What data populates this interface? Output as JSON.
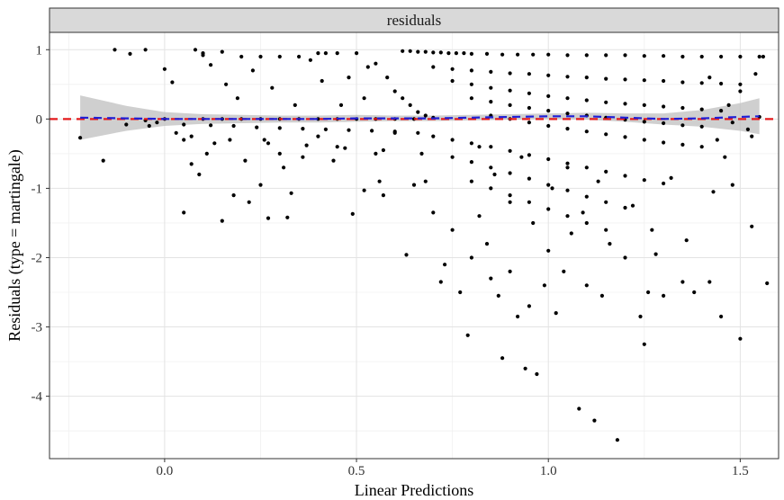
{
  "chart_data": {
    "type": "scatter",
    "facet_label": "residuals",
    "xlabel": "Linear Predictions",
    "ylabel": "Residuals (type = martingale)",
    "xlim": [
      -0.3,
      1.6
    ],
    "ylim": [
      -4.9,
      1.25
    ],
    "x_ticks": [
      0.0,
      0.5,
      1.0,
      1.5
    ],
    "x_tick_labels": [
      "0.0",
      "0.5",
      "1.0",
      "1.5"
    ],
    "y_ticks": [
      1,
      0,
      -1,
      -2,
      -3,
      -4
    ],
    "y_tick_labels": [
      "1",
      "0",
      "-1",
      "-2",
      "-3",
      "-4"
    ],
    "grid": true,
    "reference_line": {
      "y": 0,
      "style": "dashed",
      "color": "#e41a1c"
    },
    "smooth_fit": {
      "style": "dashed",
      "color": "#1f1fd6",
      "band_color": "#bfbfbf",
      "x": [
        -0.22,
        -0.1,
        0.0,
        0.1,
        0.2,
        0.3,
        0.4,
        0.5,
        0.6,
        0.7,
        0.8,
        0.9,
        1.0,
        1.1,
        1.2,
        1.3,
        1.4,
        1.5,
        1.55
      ],
      "y": [
        0.02,
        0.01,
        0.0,
        0.0,
        0.0,
        0.0,
        0.0,
        0.01,
        0.01,
        0.01,
        0.02,
        0.03,
        0.04,
        0.04,
        0.02,
        0.0,
        0.01,
        0.03,
        0.04
      ],
      "band_half_width": [
        0.32,
        0.18,
        0.1,
        0.07,
        0.06,
        0.05,
        0.05,
        0.05,
        0.04,
        0.04,
        0.04,
        0.04,
        0.04,
        0.05,
        0.06,
        0.08,
        0.12,
        0.2,
        0.26
      ]
    },
    "points": [
      [
        -0.22,
        -0.27
      ],
      [
        -0.16,
        -0.6
      ],
      [
        -0.13,
        1.0
      ],
      [
        -0.09,
        0.94
      ],
      [
        -0.05,
        1.0
      ],
      [
        -0.1,
        -0.08
      ],
      [
        -0.04,
        -0.1
      ],
      [
        -0.02,
        -0.05
      ],
      [
        0.0,
        0.72
      ],
      [
        0.02,
        0.53
      ],
      [
        0.05,
        -1.35
      ],
      [
        0.08,
        1.0
      ],
      [
        0.1,
        0.92
      ],
      [
        0.12,
        0.78
      ],
      [
        0.15,
        -1.47
      ],
      [
        0.18,
        -1.1
      ],
      [
        0.22,
        -1.2
      ],
      [
        0.25,
        -0.95
      ],
      [
        0.27,
        -1.43
      ],
      [
        0.32,
        -1.42
      ],
      [
        0.33,
        -1.07
      ],
      [
        0.45,
        -0.4
      ],
      [
        0.49,
        -1.37
      ],
      [
        0.52,
        -1.03
      ],
      [
        0.05,
        -0.3
      ],
      [
        0.07,
        -0.65
      ],
      [
        0.09,
        -0.8
      ],
      [
        0.11,
        -0.5
      ],
      [
        0.13,
        -0.35
      ],
      [
        0.16,
        0.5
      ],
      [
        0.19,
        0.3
      ],
      [
        0.21,
        -0.6
      ],
      [
        0.23,
        0.7
      ],
      [
        0.26,
        -0.3
      ],
      [
        0.28,
        0.45
      ],
      [
        0.3,
        -0.5
      ],
      [
        0.31,
        -0.7
      ],
      [
        0.34,
        0.2
      ],
      [
        0.36,
        -0.55
      ],
      [
        0.38,
        0.85
      ],
      [
        0.4,
        -0.25
      ],
      [
        0.41,
        0.55
      ],
      [
        0.42,
        0.95
      ],
      [
        0.44,
        -0.6
      ],
      [
        0.46,
        0.2
      ],
      [
        0.48,
        0.6
      ],
      [
        0.5,
        0.95
      ],
      [
        0.52,
        0.3
      ],
      [
        0.53,
        0.75
      ],
      [
        0.55,
        -0.5
      ],
      [
        0.56,
        -0.9
      ],
      [
        0.57,
        -1.1
      ],
      [
        0.6,
        -0.2
      ],
      [
        0.63,
        -1.96
      ],
      [
        0.65,
        -0.95
      ],
      [
        0.68,
        -0.9
      ],
      [
        0.7,
        -1.35
      ],
      [
        0.72,
        -2.35
      ],
      [
        0.73,
        -2.1
      ],
      [
        0.75,
        -1.6
      ],
      [
        0.77,
        -2.5
      ],
      [
        0.79,
        -3.12
      ],
      [
        0.8,
        -2.0
      ],
      [
        0.82,
        -1.4
      ],
      [
        0.84,
        -1.8
      ],
      [
        0.85,
        -2.3
      ],
      [
        0.87,
        -2.55
      ],
      [
        0.88,
        -3.45
      ],
      [
        0.9,
        -2.2
      ],
      [
        0.92,
        -2.85
      ],
      [
        0.94,
        -3.6
      ],
      [
        0.95,
        -2.7
      ],
      [
        0.97,
        -3.68
      ],
      [
        0.99,
        -2.4
      ],
      [
        1.0,
        -1.9
      ],
      [
        1.02,
        -2.8
      ],
      [
        1.04,
        -2.2
      ],
      [
        1.06,
        -1.65
      ],
      [
        1.08,
        -4.18
      ],
      [
        1.1,
        -2.4
      ],
      [
        1.12,
        -4.35
      ],
      [
        1.14,
        -2.55
      ],
      [
        1.18,
        -4.63
      ],
      [
        1.2,
        -2.0
      ],
      [
        1.24,
        -2.85
      ],
      [
        1.25,
        -3.25
      ],
      [
        1.26,
        -2.5
      ],
      [
        1.28,
        -1.95
      ],
      [
        1.3,
        -2.55
      ],
      [
        1.35,
        -2.35
      ],
      [
        1.38,
        -2.5
      ],
      [
        1.42,
        -2.35
      ],
      [
        1.45,
        -2.85
      ],
      [
        1.5,
        -3.17
      ],
      [
        1.53,
        -1.55
      ],
      [
        1.57,
        -2.37
      ],
      [
        1.43,
        -1.05
      ],
      [
        1.48,
        -0.95
      ],
      [
        0.82,
        -0.4
      ],
      [
        0.86,
        -0.8
      ],
      [
        0.9,
        -1.2
      ],
      [
        0.93,
        -0.55
      ],
      [
        0.96,
        -1.5
      ],
      [
        1.01,
        -1.0
      ],
      [
        1.05,
        -0.7
      ],
      [
        1.09,
        -1.35
      ],
      [
        1.13,
        -0.9
      ],
      [
        1.16,
        -1.8
      ],
      [
        1.22,
        -1.25
      ],
      [
        1.27,
        -1.6
      ],
      [
        1.32,
        -0.85
      ],
      [
        1.36,
        -1.75
      ],
      [
        1.4,
        -0.4
      ],
      [
        1.46,
        -0.55
      ],
      [
        0.62,
        0.98
      ],
      [
        0.64,
        0.98
      ],
      [
        0.66,
        0.97
      ],
      [
        0.68,
        0.97
      ],
      [
        0.7,
        0.96
      ],
      [
        0.72,
        0.96
      ],
      [
        0.74,
        0.95
      ],
      [
        0.76,
        0.95
      ],
      [
        0.78,
        0.95
      ],
      [
        0.8,
        0.94
      ],
      [
        0.84,
        0.94
      ],
      [
        0.88,
        0.93
      ],
      [
        0.92,
        0.93
      ],
      [
        0.96,
        0.93
      ],
      [
        1.0,
        0.93
      ],
      [
        1.05,
        0.92
      ],
      [
        1.1,
        0.92
      ],
      [
        1.15,
        0.92
      ],
      [
        1.2,
        0.92
      ],
      [
        1.25,
        0.91
      ],
      [
        1.3,
        0.91
      ],
      [
        1.35,
        0.9
      ],
      [
        1.4,
        0.9
      ],
      [
        1.45,
        0.9
      ],
      [
        1.5,
        0.9
      ],
      [
        1.55,
        0.9
      ],
      [
        0.7,
        0.75
      ],
      [
        0.75,
        0.72
      ],
      [
        0.8,
        0.7
      ],
      [
        0.85,
        0.68
      ],
      [
        0.9,
        0.66
      ],
      [
        0.95,
        0.65
      ],
      [
        1.0,
        0.63
      ],
      [
        1.05,
        0.61
      ],
      [
        1.1,
        0.6
      ],
      [
        1.15,
        0.58
      ],
      [
        1.2,
        0.57
      ],
      [
        1.25,
        0.56
      ],
      [
        1.3,
        0.55
      ],
      [
        1.35,
        0.53
      ],
      [
        1.4,
        0.52
      ],
      [
        1.45,
        0.51
      ],
      [
        1.5,
        0.5
      ],
      [
        0.75,
        0.55
      ],
      [
        0.8,
        0.5
      ],
      [
        0.85,
        0.45
      ],
      [
        0.9,
        0.41
      ],
      [
        0.95,
        0.37
      ],
      [
        1.0,
        0.33
      ],
      [
        1.05,
        0.3
      ],
      [
        1.1,
        0.27
      ],
      [
        1.15,
        0.24
      ],
      [
        1.2,
        0.22
      ],
      [
        1.25,
        0.2
      ],
      [
        1.3,
        0.18
      ],
      [
        1.35,
        0.16
      ],
      [
        1.4,
        0.14
      ],
      [
        1.45,
        0.12
      ],
      [
        0.8,
        0.3
      ],
      [
        0.85,
        0.25
      ],
      [
        0.9,
        0.2
      ],
      [
        0.95,
        0.16
      ],
      [
        1.0,
        0.12
      ],
      [
        1.05,
        0.08
      ],
      [
        1.1,
        0.05
      ],
      [
        1.15,
        0.02
      ],
      [
        1.2,
        -0.01
      ],
      [
        1.25,
        -0.04
      ],
      [
        1.3,
        -0.06
      ],
      [
        1.35,
        -0.09
      ],
      [
        1.4,
        -0.11
      ],
      [
        0.85,
        0.05
      ],
      [
        0.9,
        0.0
      ],
      [
        0.95,
        -0.05
      ],
      [
        1.0,
        -0.1
      ],
      [
        1.05,
        -0.14
      ],
      [
        1.1,
        -0.18
      ],
      [
        1.15,
        -0.22
      ],
      [
        1.2,
        -0.26
      ],
      [
        1.25,
        -0.3
      ],
      [
        1.3,
        -0.34
      ],
      [
        1.35,
        -0.37
      ],
      [
        0.7,
        -0.25
      ],
      [
        0.75,
        -0.3
      ],
      [
        0.8,
        -0.35
      ],
      [
        0.85,
        -0.4
      ],
      [
        0.9,
        -0.46
      ],
      [
        0.95,
        -0.52
      ],
      [
        1.0,
        -0.58
      ],
      [
        1.05,
        -0.64
      ],
      [
        1.1,
        -0.7
      ],
      [
        1.15,
        -0.76
      ],
      [
        1.2,
        -0.82
      ],
      [
        1.25,
        -0.88
      ],
      [
        1.3,
        -0.93
      ],
      [
        0.75,
        -0.55
      ],
      [
        0.8,
        -0.62
      ],
      [
        0.85,
        -0.7
      ],
      [
        0.9,
        -0.78
      ],
      [
        0.95,
        -0.86
      ],
      [
        1.0,
        -0.95
      ],
      [
        1.05,
        -1.03
      ],
      [
        1.1,
        -1.12
      ],
      [
        1.15,
        -1.2
      ],
      [
        1.2,
        -1.28
      ],
      [
        0.8,
        -0.9
      ],
      [
        0.85,
        -1.0
      ],
      [
        0.9,
        -1.1
      ],
      [
        0.95,
        -1.2
      ],
      [
        1.0,
        -1.3
      ],
      [
        1.05,
        -1.4
      ],
      [
        1.1,
        -1.5
      ],
      [
        1.15,
        -1.6
      ],
      [
        0.1,
        0.0
      ],
      [
        0.15,
        0.0
      ],
      [
        0.2,
        0.0
      ],
      [
        0.25,
        0.0
      ],
      [
        0.3,
        0.0
      ],
      [
        0.35,
        0.0
      ],
      [
        0.4,
        0.0
      ],
      [
        0.45,
        0.0
      ],
      [
        0.5,
        0.0
      ],
      [
        0.55,
        0.0
      ],
      [
        0.6,
        0.0
      ],
      [
        0.65,
        0.0
      ],
      [
        0.05,
        -0.08
      ],
      [
        0.12,
        -0.09
      ],
      [
        0.18,
        -0.1
      ],
      [
        0.24,
        -0.12
      ],
      [
        0.3,
        -0.13
      ],
      [
        0.36,
        -0.14
      ],
      [
        0.42,
        -0.15
      ],
      [
        0.48,
        -0.16
      ],
      [
        0.54,
        -0.17
      ],
      [
        0.6,
        -0.18
      ],
      [
        0.66,
        -0.2
      ],
      [
        0.2,
        0.9
      ],
      [
        0.25,
        0.9
      ],
      [
        0.3,
        0.9
      ],
      [
        0.35,
        0.9
      ],
      [
        0.4,
        0.95
      ],
      [
        0.45,
        0.95
      ],
      [
        0.1,
        0.95
      ],
      [
        0.15,
        0.97
      ],
      [
        0.55,
        0.8
      ],
      [
        0.58,
        0.6
      ],
      [
        0.6,
        0.4
      ],
      [
        0.62,
        0.3
      ],
      [
        0.64,
        0.2
      ],
      [
        0.66,
        0.1
      ],
      [
        0.68,
        0.05
      ],
      [
        0.7,
        0.02
      ],
      [
        0.0,
        0.0
      ],
      [
        -0.05,
        -0.02
      ],
      [
        0.03,
        -0.2
      ],
      [
        0.07,
        -0.25
      ],
      [
        0.17,
        -0.3
      ],
      [
        0.27,
        -0.35
      ],
      [
        0.37,
        -0.38
      ],
      [
        0.47,
        -0.42
      ],
      [
        0.57,
        -0.45
      ],
      [
        0.67,
        -0.5
      ],
      [
        1.52,
        -0.15
      ],
      [
        1.53,
        -0.25
      ],
      [
        1.55,
        0.03
      ],
      [
        1.56,
        0.9
      ],
      [
        1.54,
        0.65
      ],
      [
        1.5,
        0.4
      ],
      [
        1.48,
        -0.05
      ],
      [
        1.47,
        0.2
      ],
      [
        1.44,
        -0.3
      ],
      [
        1.42,
        0.6
      ]
    ]
  }
}
